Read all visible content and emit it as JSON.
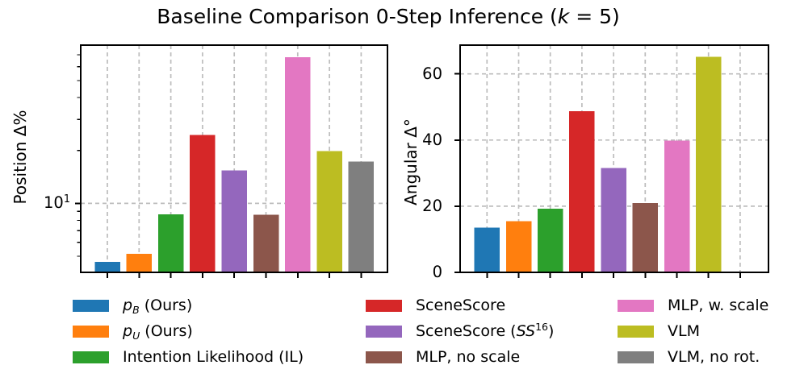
{
  "title": {
    "text": "Baseline Comparison 0-Step Inference (k = 5)",
    "parts": [
      {
        "t": "Baseline Comparison 0-Step Inference ("
      },
      {
        "t": "k",
        "i": true
      },
      {
        "t": " = 5)"
      }
    ]
  },
  "bar_colors": [
    "#1f77b4",
    "#ff7f0e",
    "#2ca02c",
    "#d62728",
    "#9467bd",
    "#8c564b",
    "#e377c2",
    "#bcbd22",
    "#7f7f7f"
  ],
  "grid_color": "#bdbdbd",
  "spine_color": "#000000",
  "chart_data": [
    {
      "type": "bar",
      "ylabel": "Position Δ%",
      "yscale": "log",
      "ylim": [
        4.05,
        79.5
      ],
      "legend_position": "below figure, 3 columns",
      "grid": "dashed; vertical line at every bar position, horizontal at major tick",
      "categories": [
        "p_B (Ours)",
        "p_U (Ours)",
        "Intention Likelihood (IL)",
        "SceneScore",
        "SceneScore (SS16)",
        "MLP, no scale",
        "MLP, w. scale",
        "VLM",
        "VLM, no rot."
      ],
      "values": [
        4.65,
        5.15,
        8.65,
        24.5,
        15.4,
        8.6,
        68,
        19.8,
        17.3
      ],
      "yticks": [
        {
          "v": 10,
          "label": "10¹",
          "parts": [
            {
              "t": "10"
            },
            {
              "t": "1",
              "sup": true
            }
          ]
        }
      ],
      "yticks_minor": [
        5,
        6,
        7,
        8,
        9,
        20,
        30,
        40,
        50,
        60,
        70
      ],
      "xticklabels": "none"
    },
    {
      "type": "bar",
      "ylabel": "Angular Δ°",
      "yscale": "linear",
      "ylim": [
        0,
        68.7
      ],
      "grid": "dashed; vertical line at every bar position, horizontal at 20/40/60",
      "categories": [
        "p_B (Ours)",
        "p_U (Ours)",
        "Intention Likelihood (IL)",
        "SceneScore",
        "SceneScore (SS16)",
        "MLP, no scale",
        "MLP, w. scale",
        "VLM",
        "VLM, no rot."
      ],
      "values": [
        13.5,
        15.5,
        19.3,
        48.7,
        31.6,
        21,
        39.8,
        65.2,
        null
      ],
      "yticks": [
        {
          "v": 0,
          "label": "0",
          "parts": [
            {
              "t": "0"
            }
          ]
        },
        {
          "v": 20,
          "label": "20",
          "parts": [
            {
              "t": "20"
            }
          ]
        },
        {
          "v": 40,
          "label": "40",
          "parts": [
            {
              "t": "40"
            }
          ]
        },
        {
          "v": 60,
          "label": "60",
          "parts": [
            {
              "t": "60"
            }
          ]
        }
      ],
      "xticklabels": "none"
    }
  ],
  "legend": {
    "entries": [
      {
        "label": "p_B (Ours)",
        "color": "#1f77b4",
        "parts": [
          {
            "t": "p",
            "i": true
          },
          {
            "t": "B",
            "i": true,
            "sub": true
          },
          {
            "t": " (Ours)"
          }
        ]
      },
      {
        "label": "p_U (Ours)",
        "color": "#ff7f0e",
        "parts": [
          {
            "t": "p",
            "i": true
          },
          {
            "t": "U",
            "i": true,
            "sub": true
          },
          {
            "t": " (Ours)"
          }
        ]
      },
      {
        "label": "Intention Likelihood (IL)",
        "color": "#2ca02c",
        "parts": [
          {
            "t": "Intention Likelihood (IL)"
          }
        ]
      },
      {
        "label": "SceneScore",
        "color": "#d62728",
        "parts": [
          {
            "t": "SceneScore"
          }
        ]
      },
      {
        "label": "SceneScore (SS16)",
        "color": "#9467bd",
        "parts": [
          {
            "t": "SceneScore ("
          },
          {
            "t": "SS",
            "i": true
          },
          {
            "t": "16",
            "sup": true
          },
          {
            "t": ")"
          }
        ]
      },
      {
        "label": "MLP, no scale",
        "color": "#8c564b",
        "parts": [
          {
            "t": "MLP, no scale"
          }
        ]
      },
      {
        "label": "MLP, w. scale",
        "color": "#e377c2",
        "parts": [
          {
            "t": "MLP, w. scale"
          }
        ]
      },
      {
        "label": "VLM",
        "color": "#bcbd22",
        "parts": [
          {
            "t": "VLM"
          }
        ]
      },
      {
        "label": "VLM, no rot.",
        "color": "#7f7f7f",
        "parts": [
          {
            "t": "VLM, no rot."
          }
        ]
      }
    ]
  }
}
